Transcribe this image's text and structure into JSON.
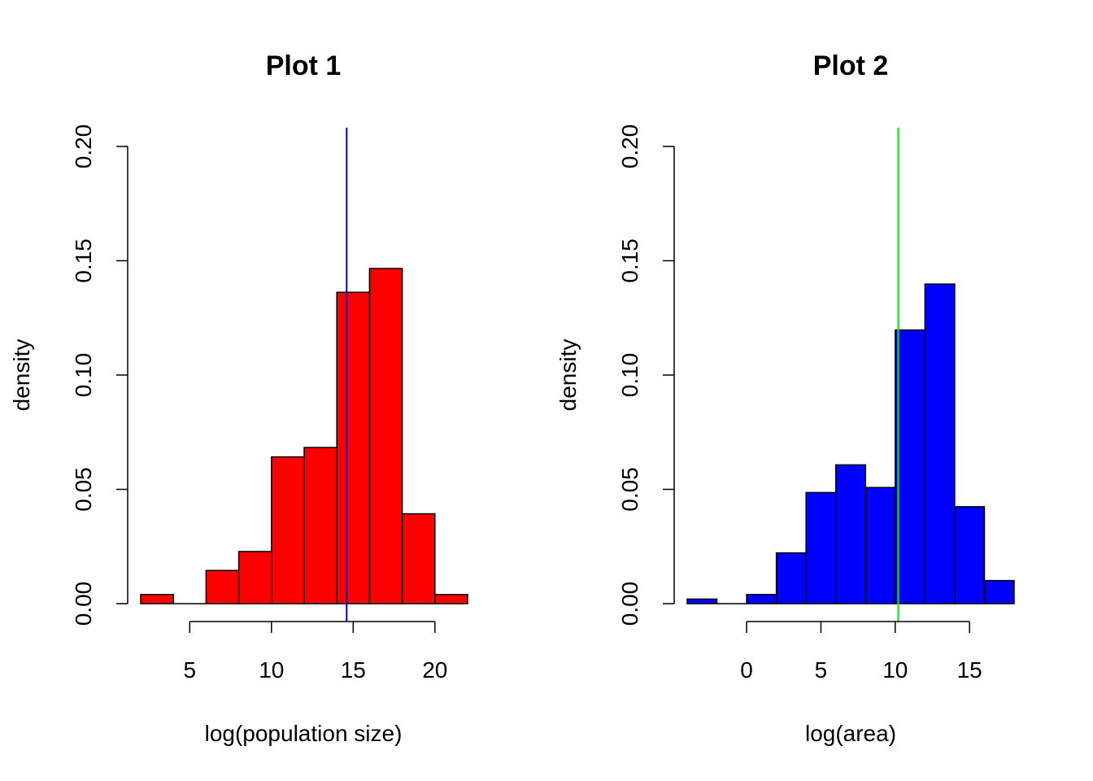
{
  "chart_data": [
    {
      "type": "bar",
      "title": "Plot 1",
      "xlabel": "log(population size)",
      "ylabel": "density",
      "bar_color": "#ff0000",
      "vline_color": "#0000cc",
      "vline_x": 14.6,
      "xlim": [
        2,
        22
      ],
      "ylim": [
        0,
        0.2
      ],
      "x_ticks": [
        5,
        10,
        15,
        20
      ],
      "y_ticks": [
        0.0,
        0.05,
        0.1,
        0.15,
        0.2
      ],
      "y_tick_labels": [
        "0.00",
        "0.05",
        "0.10",
        "0.15",
        "0.20"
      ],
      "bins": [
        {
          "x0": 2,
          "x1": 4,
          "value": 0.004
        },
        {
          "x0": 4,
          "x1": 6,
          "value": 0.0
        },
        {
          "x0": 6,
          "x1": 8,
          "value": 0.0145
        },
        {
          "x0": 8,
          "x1": 10,
          "value": 0.0228
        },
        {
          "x0": 10,
          "x1": 12,
          "value": 0.0642
        },
        {
          "x0": 12,
          "x1": 14,
          "value": 0.0683
        },
        {
          "x0": 14,
          "x1": 16,
          "value": 0.1362
        },
        {
          "x0": 16,
          "x1": 18,
          "value": 0.1466
        },
        {
          "x0": 18,
          "x1": 20,
          "value": 0.0393
        },
        {
          "x0": 20,
          "x1": 22,
          "value": 0.004
        }
      ]
    },
    {
      "type": "bar",
      "title": "Plot 2",
      "xlabel": "log(area)",
      "ylabel": "density",
      "bar_color": "#0000ff",
      "vline_color": "#00ee00",
      "vline_x": 10.2,
      "xlim": [
        -4,
        18
      ],
      "ylim": [
        0,
        0.2
      ],
      "x_ticks": [
        0,
        5,
        10,
        15
      ],
      "y_ticks": [
        0.0,
        0.05,
        0.1,
        0.15,
        0.2
      ],
      "y_tick_labels": [
        "0.00",
        "0.05",
        "0.10",
        "0.15",
        "0.20"
      ],
      "bins": [
        {
          "x0": -4,
          "x1": -2,
          "value": 0.002
        },
        {
          "x0": -2,
          "x1": 0,
          "value": 0.0
        },
        {
          "x0": 0,
          "x1": 2,
          "value": 0.004
        },
        {
          "x0": 2,
          "x1": 4,
          "value": 0.0222
        },
        {
          "x0": 4,
          "x1": 6,
          "value": 0.0486
        },
        {
          "x0": 6,
          "x1": 8,
          "value": 0.0607
        },
        {
          "x0": 8,
          "x1": 10,
          "value": 0.0508
        },
        {
          "x0": 10,
          "x1": 12,
          "value": 0.1197
        },
        {
          "x0": 12,
          "x1": 14,
          "value": 0.1398
        },
        {
          "x0": 14,
          "x1": 16,
          "value": 0.0424
        },
        {
          "x0": 16,
          "x1": 18,
          "value": 0.0101
        }
      ]
    }
  ]
}
